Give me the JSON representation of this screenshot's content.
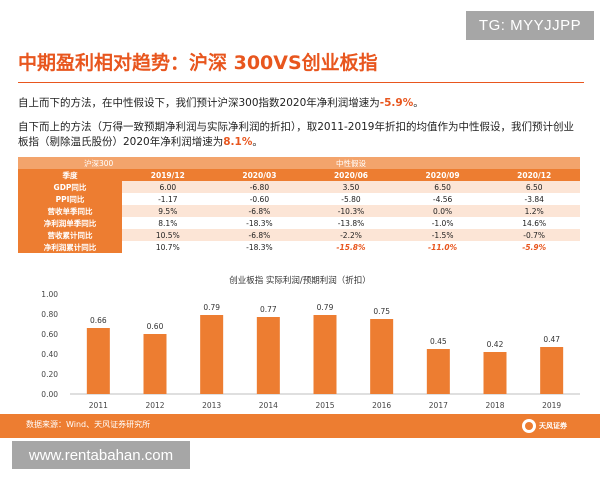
{
  "watermarks": {
    "top": "TG: MYYJJPP",
    "bottom": "www.rentabahan.com"
  },
  "title": "中期盈利相对趋势：沪深 300VS创业板指",
  "para1": {
    "text": "自上而下的方法，在中性假设下，我们预计沪深300指数2020年净利润增速为",
    "value": "-5.9%",
    "end": "。"
  },
  "para2": {
    "text": "自下而上的方法（万得一致预期净利润与实际净利润的折扣），取2011-2019年折扣的均值作为中性假设，我们预计创业板指（剔除温氏股份）2020年净利润增速为",
    "value": "8.1%",
    "end": "。"
  },
  "table": {
    "group_left": "沪深300",
    "group_right": "中性假设",
    "header_label": "季度",
    "columns": [
      "2019/12",
      "2020/03",
      "2020/06",
      "2020/09",
      "2020/12"
    ],
    "rows": [
      {
        "label": "GDP同比",
        "values": [
          "6.00",
          "-6.80",
          "3.50",
          "6.50",
          "6.50"
        ]
      },
      {
        "label": "PPI同比",
        "values": [
          "-1.17",
          "-0.60",
          "-5.80",
          "-4.56",
          "-3.84"
        ]
      },
      {
        "label": "营收单季同比",
        "values": [
          "9.5%",
          "-6.8%",
          "-10.3%",
          "0.0%",
          "1.2%"
        ]
      },
      {
        "label": "净利润单季同比",
        "values": [
          "8.1%",
          "-18.3%",
          "-13.8%",
          "-1.0%",
          "14.6%"
        ]
      },
      {
        "label": "营收累计同比",
        "values": [
          "10.5%",
          "-6.8%",
          "-2.2%",
          "-1.5%",
          "-0.7%"
        ]
      },
      {
        "label": "净利润累计同比",
        "values": [
          "10.7%",
          "-18.3%",
          "-15.8%",
          "-11.0%",
          "-5.9%"
        ]
      }
    ]
  },
  "chart_data": {
    "type": "bar",
    "title": "创业板指 实际利润/预期利润（折扣）",
    "categories": [
      "2011",
      "2012",
      "2013",
      "2014",
      "2015",
      "2016",
      "2017",
      "2018",
      "2019"
    ],
    "values": [
      0.66,
      0.6,
      0.79,
      0.77,
      0.79,
      0.75,
      0.45,
      0.42,
      0.47
    ],
    "data_labels": [
      "0.66",
      "0.60",
      "0.79",
      "0.77",
      "0.79",
      "0.75",
      "0.45",
      "0.42",
      "0.47"
    ],
    "ylim": [
      0,
      1.0
    ],
    "yticks": [
      "0.00",
      "0.20",
      "0.40",
      "0.60",
      "0.80",
      "1.00"
    ],
    "ytick_values": [
      0,
      0.2,
      0.4,
      0.6,
      0.8,
      1.0
    ],
    "bar_color": "#ed7d31",
    "grid": false,
    "legend": "none"
  },
  "footer": {
    "source": "数据来源：Wind、天风证券研究所",
    "logo_text": "天风证券"
  },
  "colors": {
    "accent": "#e8561e",
    "orange": "#ed7d31",
    "light_orange": "#fce5d6"
  }
}
